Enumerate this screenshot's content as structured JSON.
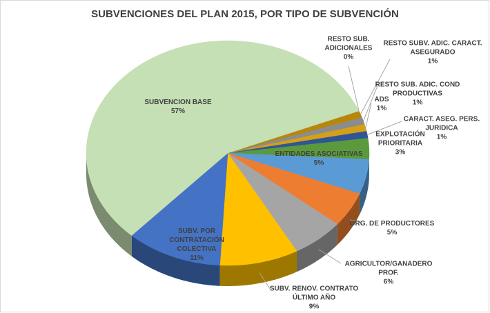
{
  "chart_data": {
    "type": "pie3d",
    "title": "SUBVENCIONES DEL PLAN 2015, POR TIPO DE SUBVENCIÓN",
    "categories": [
      "RESTO SUB. ADICIONALES",
      "RESTO SUBV. ADIC. CARACT. ASEGURADO",
      "RESTO SUB. ADIC. COND PRODUCTIVAS",
      "ADS",
      "CARACT. ASEG. PERS. JURIDICA",
      "EXPLOTACIÓN PRIORITARIA",
      "ENTIDADES ASOCIATIVAS",
      "ORG. DE PRODUCTORES",
      "AGRICULTOR/GANADERO PROF.",
      "SUBV. RENOV. CONTRATO ÚLTIMO AÑO",
      "SUBV. POR CONTRATACIÓN COLECTIVA",
      "SUBVENCION BASE"
    ],
    "values": [
      0,
      1,
      1,
      1,
      1,
      3,
      5,
      5,
      6,
      9,
      11,
      57
    ],
    "value_labels": [
      "0%",
      "1%",
      "1%",
      "1%",
      "1%",
      "3%",
      "5%",
      "5%",
      "6%",
      "9%",
      "11%",
      "57%"
    ],
    "colors": [
      "#c55a11",
      "#b8860b",
      "#8c8c8c",
      "#d4a017",
      "#2f5597",
      "#5b9a3c",
      "#5b9bd5",
      "#ed7d31",
      "#a5a5a5",
      "#ffc000",
      "#4472c4",
      "#c5e0b4"
    ]
  }
}
